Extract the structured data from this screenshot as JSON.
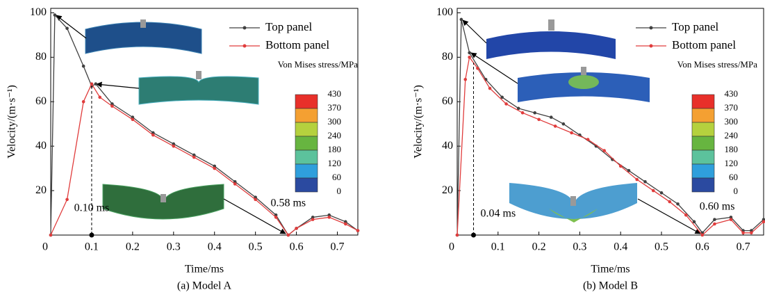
{
  "chart_data": [
    {
      "type": "line",
      "caption": "(a) Model A",
      "xlabel": "Time/ms",
      "ylabel": "Velocity/(m·s⁻¹)",
      "xlim": [
        0,
        0.75
      ],
      "ylim": [
        0,
        102
      ],
      "xticks": [
        0,
        0.1,
        0.2,
        0.3,
        0.4,
        0.5,
        0.6,
        0.7
      ],
      "yticks": [
        20,
        40,
        60,
        80,
        100
      ],
      "legend": "upper right",
      "series": [
        {
          "name": "Top panel",
          "color": "#404040",
          "x": [
            0,
            0.01,
            0.04,
            0.08,
            0.1,
            0.11,
            0.15,
            0.2,
            0.25,
            0.3,
            0.35,
            0.4,
            0.45,
            0.5,
            0.55,
            0.58,
            0.6,
            0.64,
            0.68,
            0.72,
            0.75
          ],
          "values": [
            0,
            99,
            93,
            76,
            67,
            68,
            59,
            53,
            46,
            41,
            36,
            31,
            24,
            17,
            9,
            0,
            3,
            8,
            9,
            6,
            2
          ]
        },
        {
          "name": "Bottom panel",
          "color": "#e03c3c",
          "x": [
            0,
            0.04,
            0.08,
            0.1,
            0.12,
            0.15,
            0.2,
            0.25,
            0.3,
            0.35,
            0.4,
            0.45,
            0.5,
            0.55,
            0.58,
            0.6,
            0.64,
            0.68,
            0.72,
            0.75
          ],
          "values": [
            0,
            16,
            60,
            68,
            62,
            58,
            52,
            45,
            40,
            35,
            30,
            23,
            16,
            8,
            0,
            3,
            7,
            8,
            5,
            2
          ]
        }
      ],
      "annotations": [
        {
          "text": "0.10 ms",
          "x": 0.1,
          "drop_line": true
        },
        {
          "text": "0.58 ms",
          "x": 0.58,
          "drop_line": false
        }
      ],
      "colorbar": {
        "title": "Von Mises stress/MPa",
        "ticks": [
          430,
          370,
          300,
          240,
          180,
          120,
          60,
          0
        ],
        "colors": [
          "#e8302a",
          "#f4a032",
          "#b5d13e",
          "#67b540",
          "#5cc29c",
          "#2f9fdc",
          "#2b4aa0"
        ]
      }
    },
    {
      "type": "line",
      "caption": "(b) Model B",
      "xlabel": "Time/ms",
      "ylabel": "Velocity/(m·s⁻¹)",
      "xlim": [
        0,
        0.75
      ],
      "ylim": [
        0,
        102
      ],
      "xticks": [
        0,
        0.1,
        0.2,
        0.3,
        0.4,
        0.5,
        0.6,
        0.7
      ],
      "yticks": [
        20,
        40,
        60,
        80,
        100
      ],
      "legend": "upper right",
      "series": [
        {
          "name": "Top panel",
          "color": "#404040",
          "x": [
            0,
            0.01,
            0.03,
            0.07,
            0.11,
            0.15,
            0.19,
            0.23,
            0.26,
            0.3,
            0.34,
            0.38,
            0.42,
            0.46,
            0.5,
            0.54,
            0.58,
            0.6,
            0.63,
            0.67,
            0.7,
            0.72,
            0.75
          ],
          "values": [
            0,
            97,
            82,
            70,
            62,
            57,
            55,
            53,
            50,
            45,
            40,
            34,
            29,
            24,
            19,
            14,
            6,
            1,
            7,
            8,
            2,
            2,
            7
          ]
        },
        {
          "name": "Bottom panel",
          "color": "#e03c3c",
          "x": [
            0,
            0.02,
            0.03,
            0.05,
            0.08,
            0.12,
            0.16,
            0.2,
            0.24,
            0.28,
            0.32,
            0.36,
            0.4,
            0.44,
            0.48,
            0.52,
            0.56,
            0.6,
            0.63,
            0.67,
            0.7,
            0.72,
            0.75
          ],
          "values": [
            0,
            70,
            80,
            75,
            66,
            59,
            55,
            52,
            49,
            46,
            43,
            38,
            31,
            25,
            20,
            15,
            9,
            0,
            5,
            7,
            1,
            1,
            6
          ]
        }
      ],
      "annotations": [
        {
          "text": "0.04 ms",
          "x": 0.04,
          "drop_line": true
        },
        {
          "text": "0.60 ms",
          "x": 0.6,
          "drop_line": false
        }
      ],
      "colorbar": {
        "title": "Von Mises stress/MPa",
        "ticks": [
          430,
          370,
          300,
          240,
          180,
          120,
          60,
          0
        ],
        "colors": [
          "#e8302a",
          "#f4a032",
          "#b5d13e",
          "#67b540",
          "#5cc29c",
          "#2f9fdc",
          "#2b4aa0"
        ]
      }
    }
  ]
}
